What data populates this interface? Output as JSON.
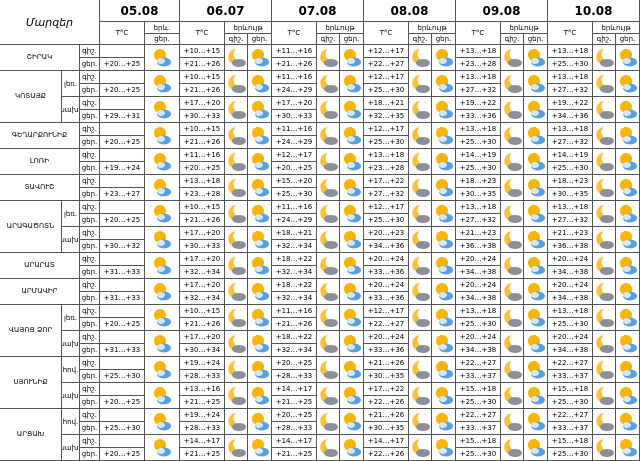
{
  "header": {
    "region": "Մարզեր",
    "dates": [
      "05.08",
      "06.07",
      "07.08",
      "08.08",
      "09.08",
      "10.08"
    ],
    "temp": "T°C",
    "sky_short": "երև.",
    "sky": "երևույթ",
    "night_label": "գիշ.",
    "day_label": "ցեր."
  },
  "regions": [
    {
      "name": "ՇԻՐԱԿ",
      "parts": [
        {
          "night": [
            "+10…+15",
            "+11…+16",
            "+12…+17",
            "+13…+18",
            "+13…+18"
          ],
          "day": [
            "+20…+25",
            "+21…+26",
            "+21…+26",
            "+22…+27",
            "+23…+28",
            "+25…+30"
          ]
        }
      ]
    },
    {
      "name": "ԿՈՏԱՅՔ",
      "parts": [
        {
          "label": "լեռ.",
          "night": [
            "+10…+15",
            "+11…+16",
            "+12…+17",
            "+13…+18",
            "+13…+18"
          ],
          "day": [
            "+20…+25",
            "+21…+26",
            "+24…+29",
            "+25…+30",
            "+27…+32",
            "+27…+32"
          ]
        },
        {
          "label": "նախ.",
          "night": [
            "+17…+20",
            "+17…+20",
            "+18…+21",
            "+19…+22",
            "+19…+22"
          ],
          "day": [
            "+29…+31",
            "+30…+33",
            "+30…+33",
            "+32…+35",
            "+33…+36",
            "+34…+36"
          ]
        }
      ]
    },
    {
      "name": "ԳԵՂԱՐՔՈՒՆԻՔ",
      "parts": [
        {
          "night": [
            "+10…+15",
            "+11…+16",
            "+12…+17",
            "+13…+18",
            "+13…+18"
          ],
          "day": [
            "+20…+25",
            "+21…+26",
            "+24…+29",
            "+25…+30",
            "+25…+30",
            "+27…+32"
          ]
        }
      ]
    },
    {
      "name": "ԼՈՌԻ",
      "parts": [
        {
          "night": [
            "+11…+16",
            "+12…+17",
            "+13…+18",
            "+14…+19",
            "+14…+19"
          ],
          "day": [
            "+19…+24",
            "+20…+25",
            "+20…+25",
            "+23…+28",
            "+25…+30",
            "+25…+30"
          ]
        }
      ]
    },
    {
      "name": "ՏԱՎՈՒՇ",
      "parts": [
        {
          "night": [
            "+13…+18",
            "+15…+20",
            "+17…+22",
            "+18…+23",
            "+18…+23"
          ],
          "day": [
            "+23…+27",
            "+23…+28",
            "+25…+30",
            "+27…+32",
            "+30…+35",
            "+30…+35"
          ]
        }
      ]
    },
    {
      "name": "ԱՐԱԳԱԾՈՏՆ",
      "parts": [
        {
          "label": "լեռ.",
          "night": [
            "+10…+15",
            "+11…+16",
            "+12…+17",
            "+13…+18",
            "+13…+18"
          ],
          "day": [
            "+20…+25",
            "+21…+26",
            "+24…+29",
            "+25…+30",
            "+27…+32",
            "+27…+32"
          ]
        },
        {
          "label": "նախ.",
          "night": [
            "+17…+20",
            "+18…+21",
            "+20…+23",
            "+21…+23",
            "+21…+23"
          ],
          "day": [
            "+30…+32",
            "+30…+33",
            "+32…+34",
            "+34…+36",
            "+36…+38",
            "+36…+38"
          ]
        }
      ]
    },
    {
      "name": "ԱՐԱՐԱՏ",
      "parts": [
        {
          "night": [
            "+17…+20",
            "+18…+22",
            "+20…+24",
            "+20…+24",
            "+20…+24"
          ],
          "day": [
            "+31…+33",
            "+32…+34",
            "+32…+34",
            "+33…+36",
            "+34…+38",
            "+34…+38"
          ]
        }
      ]
    },
    {
      "name": "ԱՐՄԱՎԻՐ",
      "parts": [
        {
          "night": [
            "+17…+20",
            "+18…+22",
            "+20…+24",
            "+20…+24",
            "+20…+24"
          ],
          "day": [
            "+31…+33",
            "+32…+34",
            "+32…+34",
            "+33…+36",
            "+34…+38",
            "+34…+38"
          ]
        }
      ]
    },
    {
      "name": "ՎԱՅՈՑ ՁՈՐ",
      "parts": [
        {
          "label": "լեռ.",
          "night": [
            "+10…+15",
            "+11…+16",
            "+12…+17",
            "+13…+18",
            "+13…+18"
          ],
          "day": [
            "+20…+25",
            "+21…+26",
            "+21…+26",
            "+22…+27",
            "+25…+30",
            "+25…+30"
          ]
        },
        {
          "label": "նախ.",
          "night": [
            "+17…+20",
            "+18…+22",
            "+20…+24",
            "+20…+24",
            "+20…+24"
          ],
          "day": [
            "+31…+33",
            "+30…+34",
            "+32…+34",
            "+33…+36",
            "+34…+38",
            "+34…+38"
          ]
        }
      ]
    },
    {
      "name": "ՍՅՈՒՆԻՔ",
      "parts": [
        {
          "label": "հով.",
          "night": [
            "+19…+24",
            "+20…+25",
            "+21…+26",
            "+22…+27",
            "+22…+27"
          ],
          "day": [
            "+25…+30",
            "+28…+33",
            "+28…+33",
            "+30…+35",
            "+33…+37",
            "+33…+37"
          ]
        },
        {
          "label": "նախ.",
          "night": [
            "+13…+16",
            "+14…+17",
            "+17…+22",
            "+15…+18",
            "+15…+18"
          ],
          "day": [
            "+20…+25",
            "+21…+25",
            "+21…+25",
            "+22…+26",
            "+25…+30",
            "+25…+30"
          ]
        }
      ]
    },
    {
      "name": "ԱՐՑԱԽ",
      "parts": [
        {
          "label": "հով.",
          "night": [
            "+19…+24",
            "+20…+25",
            "+21…+26",
            "+22…+27",
            "+22…+27"
          ],
          "day": [
            "+25…+30",
            "+28…+33",
            "+28…+33",
            "+30…+35",
            "+33…+37",
            "+33…+37"
          ]
        },
        {
          "label": "նախ.",
          "night": [
            "+14…+17",
            "+14…+17",
            "+14…+17",
            "+15…+18",
            "+15…+18"
          ],
          "day": [
            "+20…+25",
            "+21…+25",
            "+21…+25",
            "+22…+26",
            "+25…+30",
            "+25…+30"
          ]
        }
      ]
    }
  ]
}
